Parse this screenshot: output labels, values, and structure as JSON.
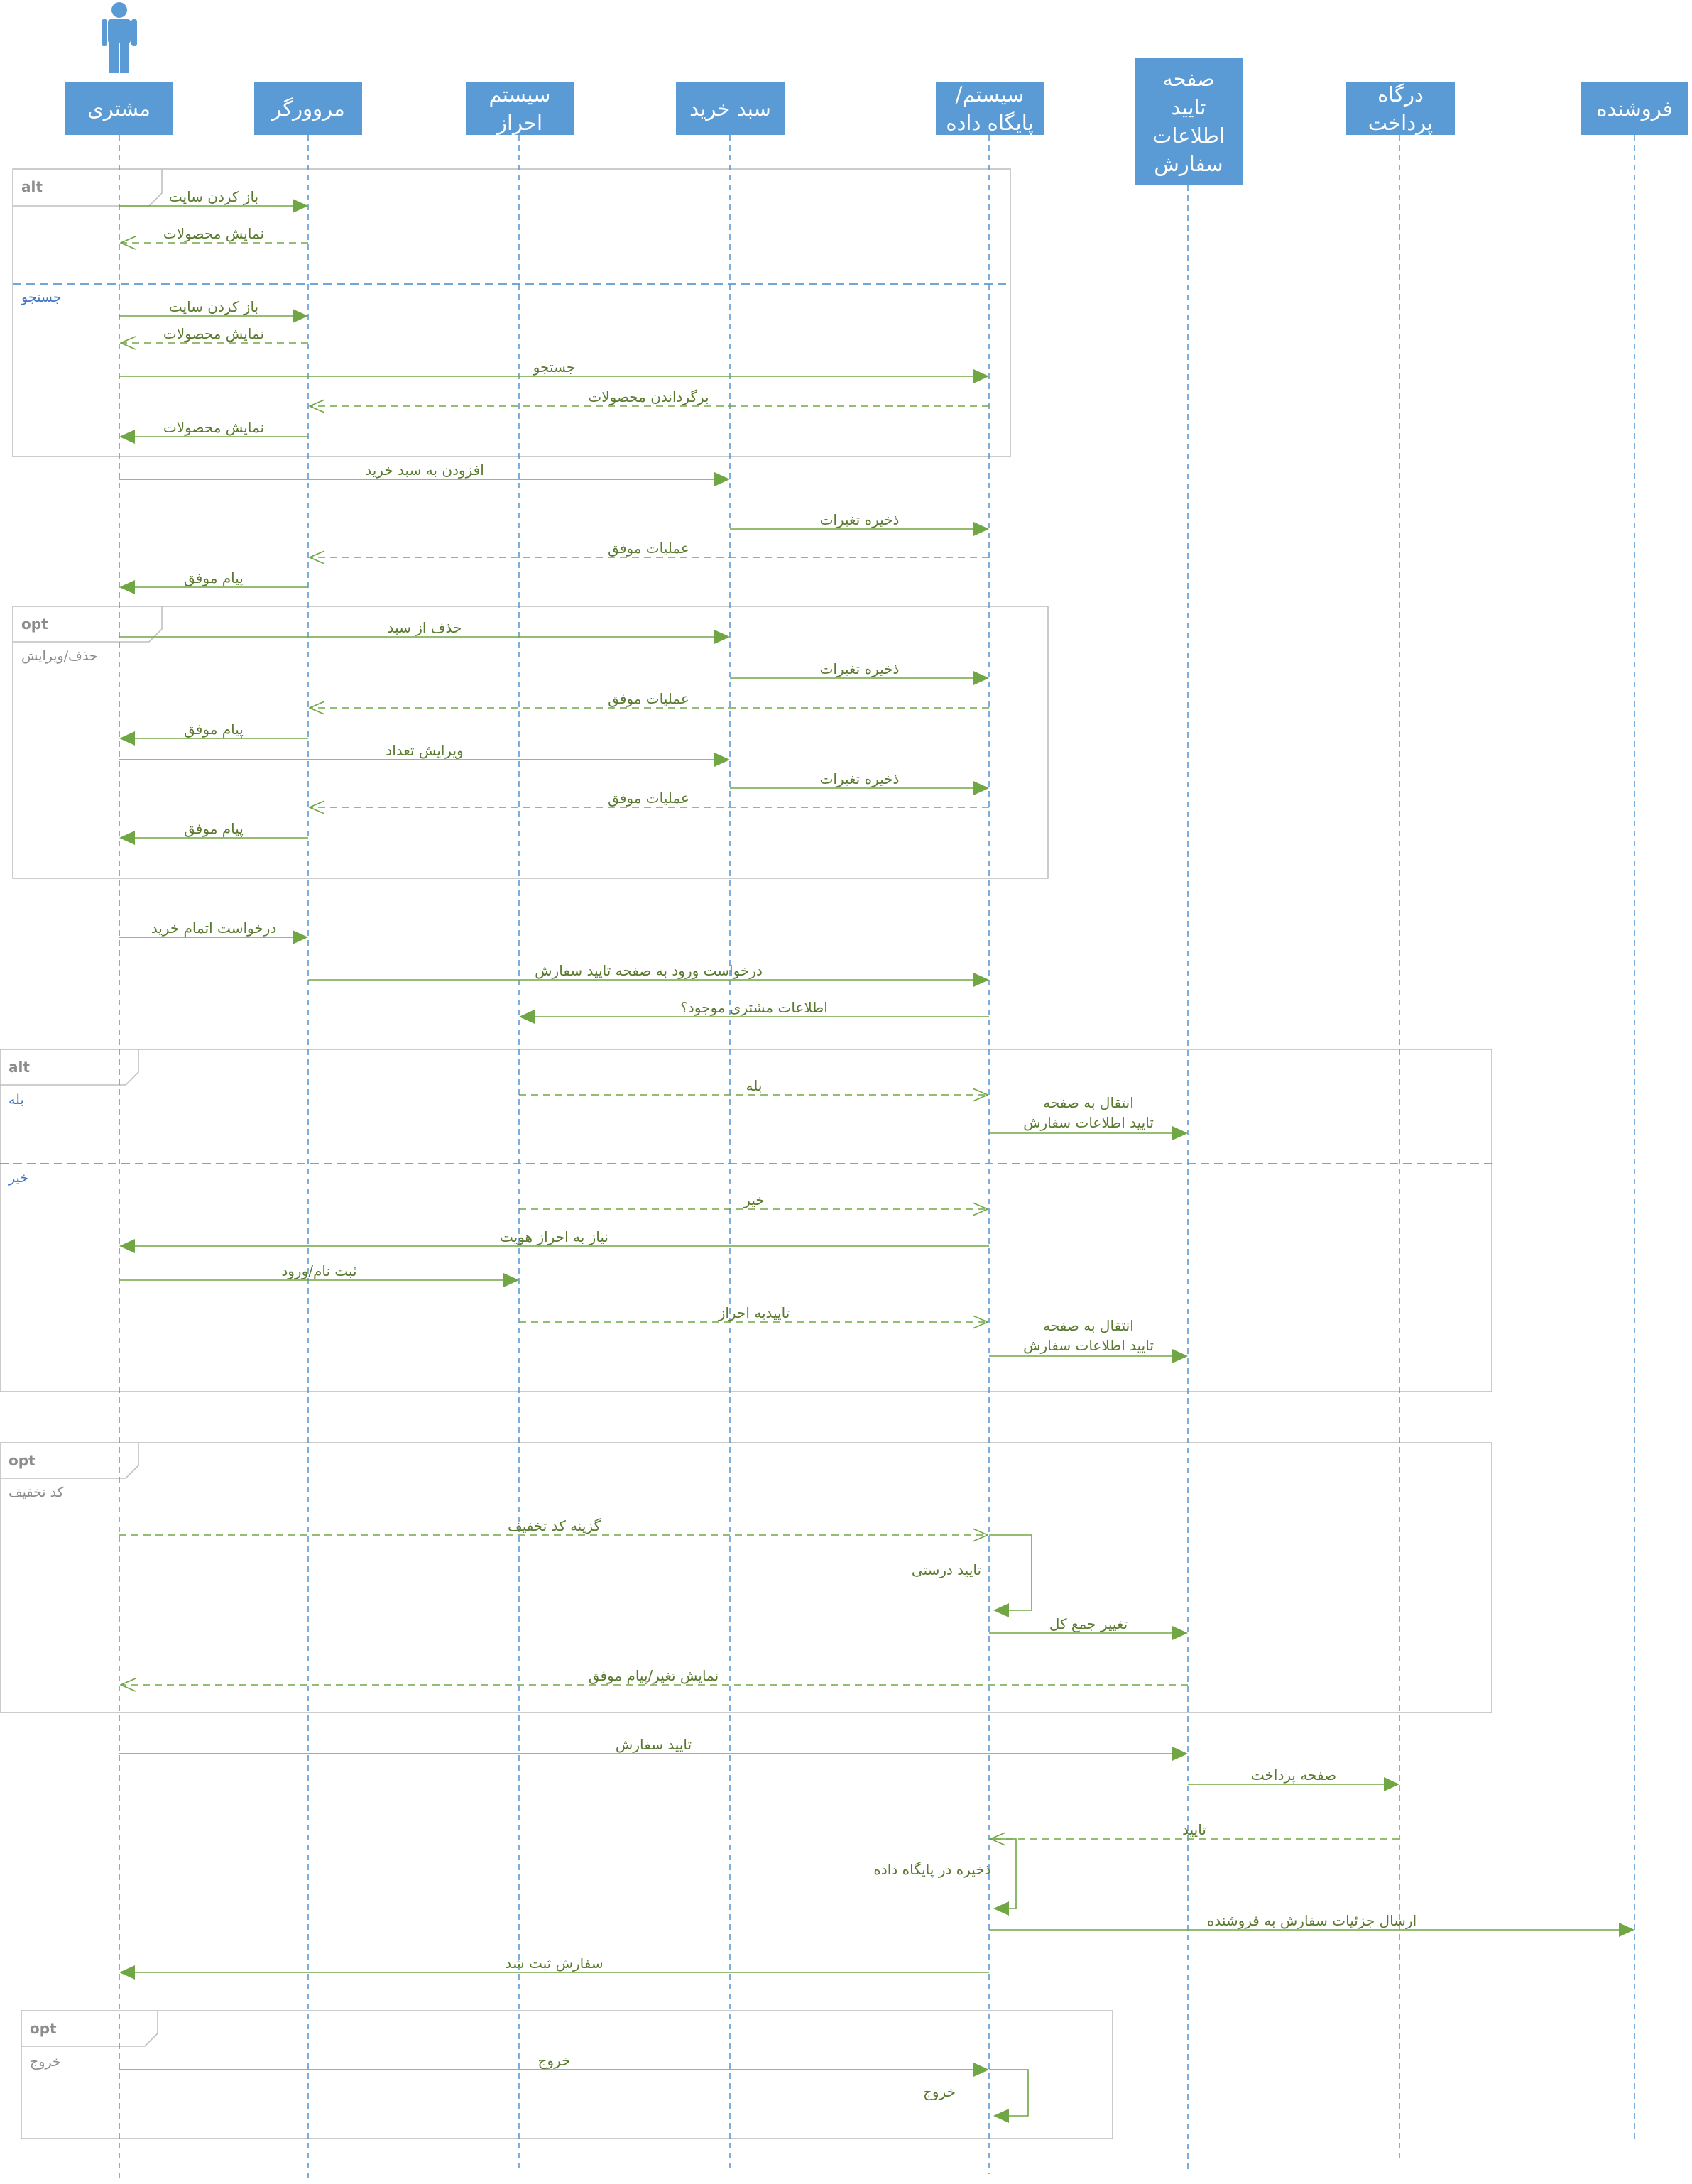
{
  "lifelines": [
    {
      "id": "customer",
      "label": [
        "مشتری"
      ]
    },
    {
      "id": "browser",
      "label": [
        "مروورگر"
      ]
    },
    {
      "id": "auth",
      "label": [
        "سیستم",
        "احراز"
      ]
    },
    {
      "id": "cart",
      "label": [
        "سبد خرید"
      ]
    },
    {
      "id": "db",
      "label": [
        "سیستم/",
        "پایگاه داده"
      ]
    },
    {
      "id": "confirm",
      "label": [
        "صفحه",
        "تایید",
        "اطلاعات",
        "سفارش"
      ]
    },
    {
      "id": "gateway",
      "label": [
        "درگاه",
        "پرداخت"
      ]
    },
    {
      "id": "seller",
      "label": [
        "فروشنده"
      ]
    }
  ],
  "fragments": [
    {
      "tag": "alt",
      "guards": [
        {
          "text": "",
          "style": "blue"
        },
        {
          "text": "جستجو",
          "style": "blue"
        }
      ]
    },
    {
      "tag": "opt",
      "guards": [
        {
          "text": "حذف/ویرایش",
          "style": "gray"
        }
      ]
    },
    {
      "tag": "alt",
      "guards": [
        {
          "text": "بله",
          "style": "blue"
        },
        {
          "text": "خیر",
          "style": "blue"
        }
      ]
    },
    {
      "tag": "opt",
      "guards": [
        {
          "text": "کد تخفیف",
          "style": "gray"
        }
      ]
    },
    {
      "tag": "opt",
      "guards": [
        {
          "text": "خروج",
          "style": "gray"
        }
      ]
    }
  ],
  "messages": [
    {
      "from": "customer",
      "to": "browser",
      "text": "باز کردن سایت",
      "kind": "sync"
    },
    {
      "from": "browser",
      "to": "customer",
      "text": "نمایش محصولات",
      "kind": "reply"
    },
    {
      "from": "customer",
      "to": "browser",
      "text": "باز کردن سایت",
      "kind": "sync"
    },
    {
      "from": "browser",
      "to": "customer",
      "text": "نمایش محصولات",
      "kind": "reply"
    },
    {
      "from": "customer",
      "to": "db",
      "text": "جستجو",
      "kind": "sync"
    },
    {
      "from": "db",
      "to": "browser",
      "text": "برگرداندن محصولات",
      "kind": "reply"
    },
    {
      "from": "browser",
      "to": "customer",
      "text": "نمایش محصولات",
      "kind": "sync"
    },
    {
      "from": "customer",
      "to": "cart",
      "text": "افزودن به سبد خرید",
      "kind": "sync"
    },
    {
      "from": "cart",
      "to": "db",
      "text": "ذخیره تغیرات",
      "kind": "sync"
    },
    {
      "from": "db",
      "to": "browser",
      "text": "عملیات موفق",
      "kind": "reply"
    },
    {
      "from": "browser",
      "to": "customer",
      "text": "پیام موفق",
      "kind": "sync"
    },
    {
      "from": "customer",
      "to": "cart",
      "text": "حذف از سبد",
      "kind": "sync"
    },
    {
      "from": "cart",
      "to": "db",
      "text": "ذخیره تغیرات",
      "kind": "sync"
    },
    {
      "from": "db",
      "to": "browser",
      "text": "عملیات موفق",
      "kind": "reply"
    },
    {
      "from": "browser",
      "to": "customer",
      "text": "پیام موفق",
      "kind": "sync"
    },
    {
      "from": "customer",
      "to": "cart",
      "text": "ویرایش تعداد",
      "kind": "sync"
    },
    {
      "from": "cart",
      "to": "db",
      "text": "ذخیره تغیرات",
      "kind": "sync"
    },
    {
      "from": "db",
      "to": "browser",
      "text": "عملیات موفق",
      "kind": "reply"
    },
    {
      "from": "browser",
      "to": "customer",
      "text": "پیام موفق",
      "kind": "sync"
    },
    {
      "from": "customer",
      "to": "browser",
      "text": "درخواست اتمام خرید",
      "kind": "sync"
    },
    {
      "from": "browser",
      "to": "db",
      "text": "درخواست ورود به صفحه تایید سفارش",
      "kind": "sync"
    },
    {
      "from": "db",
      "to": "auth",
      "text": "اطلاعات مشتری موجود؟",
      "kind": "sync"
    },
    {
      "from": "auth",
      "to": "db",
      "text": "بله",
      "kind": "reply"
    },
    {
      "from": "db",
      "to": "confirm",
      "text": [
        "انتقال به صفحه",
        "تایید اطلاعات سفارش"
      ],
      "kind": "sync"
    },
    {
      "from": "auth",
      "to": "db",
      "text": "خیر",
      "kind": "reply"
    },
    {
      "from": "db",
      "to": "customer",
      "text": "نیاز به احراز هویت",
      "kind": "sync"
    },
    {
      "from": "customer",
      "to": "auth",
      "text": "ثبت نام/ورود",
      "kind": "sync"
    },
    {
      "from": "auth",
      "to": "db",
      "text": "تاییدیه احراز",
      "kind": "reply"
    },
    {
      "from": "db",
      "to": "confirm",
      "text": [
        "انتقال به صفحه",
        "تایید اطلاعات سفارش"
      ],
      "kind": "sync"
    },
    {
      "from": "customer",
      "to": "db",
      "text": "گزینه کد تخفیف",
      "kind": "reply"
    },
    {
      "from": "db",
      "to": "db",
      "text": "تایید درستی",
      "kind": "self"
    },
    {
      "from": "db",
      "to": "confirm",
      "text": "تغییر جمع کل",
      "kind": "sync"
    },
    {
      "from": "confirm",
      "to": "customer",
      "text": "نمایش تغیر/پیام موفق",
      "kind": "reply"
    },
    {
      "from": "customer",
      "to": "confirm",
      "text": "تایید سفارش",
      "kind": "sync"
    },
    {
      "from": "confirm",
      "to": "gateway",
      "text": "صفحه پرداخت",
      "kind": "sync"
    },
    {
      "from": "gateway",
      "to": "db",
      "text": "تایید",
      "kind": "reply"
    },
    {
      "from": "db",
      "to": "db",
      "text": "ذخیره در پایگاه داده",
      "kind": "self"
    },
    {
      "from": "db",
      "to": "seller",
      "text": "ارسال جزئیات سفارش به فروشنده",
      "kind": "sync"
    },
    {
      "from": "db",
      "to": "customer",
      "text": "سفارش ثبت شد",
      "kind": "sync"
    },
    {
      "from": "customer",
      "to": "db",
      "text": "خروج",
      "kind": "sync"
    },
    {
      "from": "db",
      "to": "db",
      "text": "خروج",
      "kind": "self"
    }
  ],
  "colors": {
    "header": "#5b9bd5",
    "lifeline": "#5b9bd5",
    "message": "#70a644",
    "fragment_border": "#bfbfbf",
    "separator": "#5b9bd5"
  }
}
